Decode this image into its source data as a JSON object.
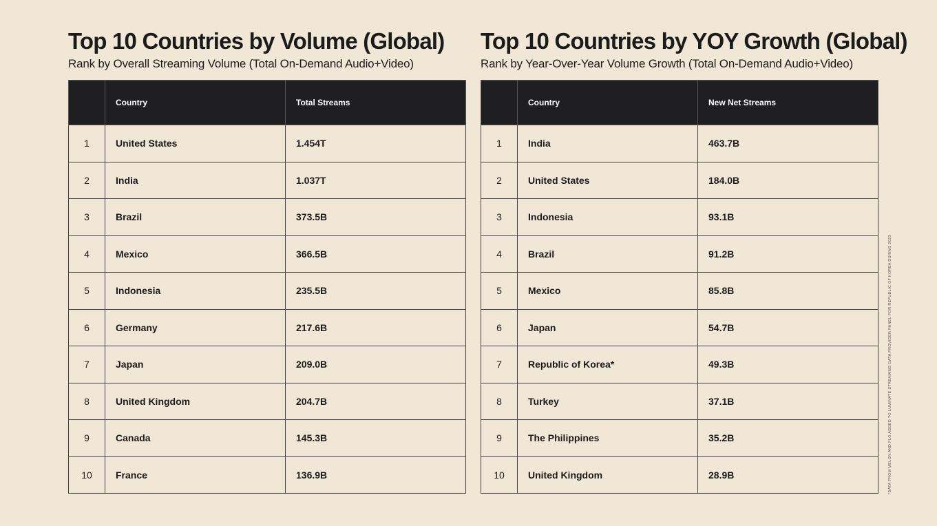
{
  "tables": [
    {
      "title": "Top 10 Countries by Volume (Global)",
      "subtitle": "Rank by Overall Streaming Volume (Total On-Demand Audio+Video)",
      "header": [
        "Country",
        "Total Streams"
      ],
      "rows": [
        [
          "1",
          "United States",
          "1.454T"
        ],
        [
          "2",
          "India",
          "1.037T"
        ],
        [
          "3",
          "Brazil",
          "373.5B"
        ],
        [
          "4",
          "Mexico",
          "366.5B"
        ],
        [
          "5",
          "Indonesia",
          "235.5B"
        ],
        [
          "6",
          "Germany",
          "217.6B"
        ],
        [
          "7",
          "Japan",
          "209.0B"
        ],
        [
          "8",
          "United Kingdom",
          "204.7B"
        ],
        [
          "9",
          "Canada",
          "145.3B"
        ],
        [
          "10",
          "France",
          "136.9B"
        ]
      ]
    },
    {
      "title": "Top 10 Countries by YOY Growth (Global)",
      "subtitle": "Rank by Year-Over-Year Volume Growth (Total On-Demand Audio+Video)",
      "header": [
        "Country",
        "New Net Streams"
      ],
      "rows": [
        [
          "1",
          "India",
          "463.7B"
        ],
        [
          "2",
          "United States",
          "184.0B"
        ],
        [
          "3",
          "Indonesia",
          "93.1B"
        ],
        [
          "4",
          "Brazil",
          "91.2B"
        ],
        [
          "5",
          "Mexico",
          "85.8B"
        ],
        [
          "6",
          "Japan",
          "54.7B"
        ],
        [
          "7",
          "Republic of Korea*",
          "49.3B"
        ],
        [
          "8",
          "Turkey",
          "37.1B"
        ],
        [
          "9",
          "The Philippines",
          "35.2B"
        ],
        [
          "10",
          "United Kingdom",
          "28.9B"
        ]
      ]
    }
  ],
  "footnote": "*DATA FROM MELON AND FLO ADDED TO LUMINATE STREAMING DATA PROVIDER PANEL FOR REPUBLIC OF KOREA DURING 2023"
}
